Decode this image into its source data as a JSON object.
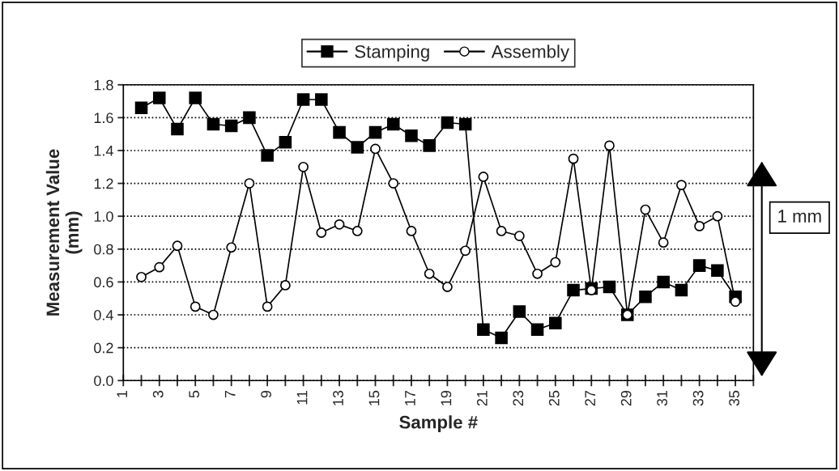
{
  "chart_data": {
    "type": "line",
    "xlabel": "Sample #",
    "ylabel": "Measurement Value\n(mm)",
    "x": [
      2,
      3,
      4,
      5,
      6,
      7,
      8,
      9,
      10,
      11,
      12,
      13,
      14,
      15,
      16,
      17,
      18,
      19,
      20,
      21,
      22,
      23,
      24,
      25,
      26,
      27,
      28,
      29,
      30,
      31,
      32,
      33,
      34,
      35
    ],
    "series": [
      {
        "name": "Stamping",
        "color": "#000000",
        "marker": "square",
        "values": [
          1.66,
          1.72,
          1.53,
          1.72,
          1.56,
          1.55,
          1.6,
          1.37,
          1.45,
          1.71,
          1.71,
          1.51,
          1.42,
          1.51,
          1.56,
          1.49,
          1.43,
          1.57,
          1.56,
          0.31,
          0.26,
          0.42,
          0.31,
          0.35,
          0.55,
          0.56,
          0.57,
          0.4,
          0.51,
          0.6,
          0.55,
          0.7,
          0.67,
          0.51
        ]
      },
      {
        "name": "Assembly",
        "color": "#000000",
        "marker": "circle",
        "values": [
          0.63,
          0.69,
          0.82,
          0.45,
          0.4,
          0.81,
          1.2,
          0.45,
          0.58,
          1.3,
          0.9,
          0.95,
          0.91,
          1.41,
          1.2,
          0.91,
          0.65,
          0.57,
          0.79,
          1.24,
          0.91,
          0.88,
          0.65,
          0.72,
          1.35,
          0.55,
          1.43,
          0.4,
          1.04,
          0.84,
          1.19,
          0.94,
          1.0,
          0.48
        ]
      }
    ],
    "xlim": [
      1,
      36
    ],
    "xticks": [
      1,
      {
        "value": 2,
        "label": null
      },
      3,
      {
        "value": 4,
        "label": null
      },
      5,
      {
        "value": 6,
        "label": null
      },
      7,
      {
        "value": 8,
        "label": null
      },
      9,
      {
        "value": 10,
        "label": null
      },
      11,
      {
        "value": 12,
        "label": null
      },
      13,
      {
        "value": 14,
        "label": null
      },
      15,
      {
        "value": 16,
        "label": null
      },
      17,
      {
        "value": 18,
        "label": null
      },
      19,
      {
        "value": 20,
        "label": null
      },
      21,
      {
        "value": 22,
        "label": null
      },
      23,
      {
        "value": 24,
        "label": null
      },
      25,
      {
        "value": 26,
        "label": null
      },
      27,
      {
        "value": 28,
        "label": null
      },
      29,
      {
        "value": 30,
        "label": null
      },
      31,
      {
        "value": 32,
        "label": null
      },
      33,
      {
        "value": 34,
        "label": null
      },
      35,
      {
        "value": 36,
        "label": null
      }
    ],
    "ylim": [
      0,
      1.8
    ],
    "yticks": [
      {
        "value": 0,
        "label": "0.0"
      },
      {
        "value": 0.2,
        "label": "0.2"
      },
      {
        "value": 0.4,
        "label": "0.4"
      },
      {
        "value": 0.6,
        "label": "0.6"
      },
      {
        "value": 0.8,
        "label": "0.8"
      },
      {
        "value": 1.0,
        "label": "1.0"
      },
      {
        "value": 1.2,
        "label": "1.2"
      },
      {
        "value": 1.4,
        "label": "1.4"
      },
      {
        "value": 1.6,
        "label": "1.6"
      },
      {
        "value": 1.8,
        "label": "1.8"
      }
    ],
    "grid": "y",
    "legend": "top",
    "line_style": "solid",
    "annotations": [
      "1 mm"
    ]
  }
}
